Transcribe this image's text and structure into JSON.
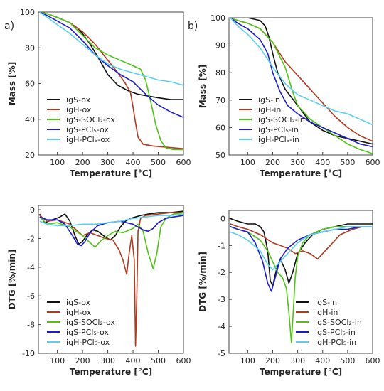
{
  "series_colors": [
    "#111111",
    "#b23a1e",
    "#4fc415",
    "#1c1ccf",
    "#5ad0ee"
  ],
  "chart_data": [
    {
      "type": "line",
      "panel_letter": "a)",
      "xlabel": "Temperature [°C]",
      "ylabel": "Mass [%]",
      "xlim": [
        25,
        600
      ],
      "ylim": [
        20,
        100
      ],
      "xticks": [
        100,
        200,
        300,
        400,
        500,
        600
      ],
      "yticks": [
        20,
        40,
        60,
        80,
        100
      ],
      "legend_position": "lower-left",
      "series": [
        {
          "name": "ligS-ox",
          "x": [
            30,
            60,
            100,
            150,
            180,
            200,
            230,
            260,
            300,
            340,
            380,
            420,
            460,
            500,
            550,
            600
          ],
          "values": [
            100,
            99,
            97,
            94,
            91,
            88,
            82,
            75,
            65,
            59,
            56,
            54,
            53,
            52,
            51,
            51
          ]
        },
        {
          "name": "ligH-ox",
          "x": [
            30,
            60,
            100,
            150,
            200,
            250,
            300,
            340,
            370,
            390,
            400,
            410,
            420,
            440,
            480,
            520,
            560,
            600
          ],
          "values": [
            100,
            99,
            97,
            94,
            89,
            82,
            73,
            66,
            60,
            55,
            47,
            38,
            30,
            26,
            25,
            24.5,
            24,
            23.5
          ]
        },
        {
          "name": "ligS-SOCl₂-ox",
          "x": [
            30,
            60,
            100,
            150,
            200,
            250,
            300,
            350,
            400,
            430,
            450,
            470,
            490,
            510,
            530,
            560,
            600
          ],
          "values": [
            100,
            99,
            97,
            94,
            87,
            80,
            76,
            73,
            70,
            68,
            62,
            50,
            37,
            28,
            24,
            23,
            23
          ]
        },
        {
          "name": "ligS-PCl₅-ox",
          "x": [
            30,
            60,
            100,
            150,
            200,
            250,
            300,
            350,
            400,
            450,
            500,
            550,
            600
          ],
          "values": [
            100,
            98,
            95,
            91,
            84,
            76,
            70,
            65,
            61,
            54,
            48,
            44,
            41
          ]
        },
        {
          "name": "ligH-PCl₅-ox",
          "x": [
            30,
            60,
            100,
            150,
            200,
            250,
            300,
            350,
            400,
            450,
            500,
            550,
            600
          ],
          "values": [
            100,
            97,
            93,
            88,
            82,
            76,
            71,
            68,
            66,
            64,
            62,
            61,
            59
          ]
        }
      ]
    },
    {
      "type": "line",
      "panel_letter": "b)",
      "xlabel": "Temperature [°C]",
      "ylabel": "Mass [%]",
      "xlim": [
        25,
        600
      ],
      "ylim": [
        50,
        100
      ],
      "xticks": [
        100,
        200,
        300,
        400,
        500,
        600
      ],
      "yticks": [
        50,
        60,
        70,
        80,
        90,
        100
      ],
      "legend_position": "lower-left",
      "series": [
        {
          "name": "ligS-in",
          "x": [
            30,
            60,
            100,
            150,
            170,
            185,
            200,
            220,
            250,
            300,
            350,
            400,
            450,
            500,
            550,
            600
          ],
          "values": [
            100,
            100,
            100,
            99,
            97,
            93,
            87,
            80,
            74,
            68,
            62,
            59,
            57,
            56,
            55,
            54
          ]
        },
        {
          "name": "ligH-in",
          "x": [
            30,
            60,
            100,
            150,
            200,
            250,
            300,
            350,
            400,
            450,
            500,
            550,
            600
          ],
          "values": [
            100,
            99,
            98,
            96,
            91,
            84,
            79,
            74,
            69,
            64,
            60,
            57,
            55
          ]
        },
        {
          "name": "ligS-SOCl₂-in",
          "x": [
            30,
            60,
            100,
            150,
            200,
            250,
            280,
            300,
            350,
            400,
            450,
            500,
            550,
            600
          ],
          "values": [
            100,
            99,
            98,
            96,
            91,
            82,
            73,
            68,
            63,
            60,
            57,
            54,
            52,
            50.5
          ]
        },
        {
          "name": "ligS-PCl₅-in",
          "x": [
            30,
            60,
            100,
            150,
            180,
            200,
            230,
            260,
            300,
            350,
            400,
            450,
            500,
            550,
            600
          ],
          "values": [
            100,
            98,
            96,
            92,
            87,
            80,
            73,
            68,
            65,
            62,
            60,
            58,
            56,
            54,
            53
          ]
        },
        {
          "name": "ligH-PCl₅-in",
          "x": [
            30,
            60,
            100,
            150,
            200,
            250,
            300,
            350,
            400,
            450,
            500,
            550,
            600
          ],
          "values": [
            100,
            97,
            94,
            89,
            82,
            76,
            72,
            70,
            68,
            66,
            65,
            63,
            61
          ]
        }
      ]
    },
    {
      "type": "line",
      "panel_letter": "",
      "xlabel": "Temperature [°C]",
      "ylabel": "DTG [%/min]",
      "xlim": [
        25,
        600
      ],
      "ylim": [
        -10,
        0.3
      ],
      "xticks": [
        100,
        200,
        300,
        400,
        500,
        600
      ],
      "yticks": [
        0,
        -2,
        -4,
        -6,
        -8,
        -10
      ],
      "legend_position": "lower-left",
      "series": [
        {
          "name": "ligS-ox",
          "x": [
            30,
            50,
            80,
            110,
            130,
            150,
            170,
            185,
            200,
            220,
            240,
            260,
            290,
            310,
            330,
            350,
            370,
            390,
            410,
            430,
            460,
            500,
            550,
            600
          ],
          "values": [
            -0.3,
            -0.9,
            -0.7,
            -0.5,
            -0.3,
            -0.8,
            -1.8,
            -2.4,
            -2.2,
            -1.7,
            -1.4,
            -1.5,
            -1.9,
            -2.1,
            -1.8,
            -1.2,
            -0.8,
            -0.6,
            -0.5,
            -0.4,
            -0.3,
            -0.2,
            -0.2,
            -0.1
          ]
        },
        {
          "name": "ligH-ox",
          "x": [
            30,
            60,
            100,
            150,
            200,
            230,
            260,
            290,
            320,
            345,
            360,
            375,
            385,
            395,
            405,
            410,
            415,
            420,
            430,
            450,
            500,
            550,
            600
          ],
          "values": [
            -0.4,
            -0.8,
            -0.7,
            -1.0,
            -1.8,
            -1.6,
            -1.8,
            -2.0,
            -2.1,
            -2.8,
            -3.5,
            -4.5,
            -3.0,
            -1.8,
            -3.5,
            -9.5,
            -6.0,
            -1.5,
            -0.6,
            -0.4,
            -0.3,
            -0.2,
            -0.2
          ]
        },
        {
          "name": "ligS-SOCl₂-ox",
          "x": [
            30,
            60,
            100,
            150,
            200,
            230,
            250,
            270,
            300,
            330,
            360,
            400,
            420,
            440,
            460,
            480,
            495,
            510,
            530,
            560,
            600
          ],
          "values": [
            -0.5,
            -1.0,
            -0.9,
            -1.2,
            -1.8,
            -2.3,
            -2.6,
            -2.2,
            -1.8,
            -1.5,
            -1.6,
            -1.3,
            -1.0,
            -1.5,
            -3.0,
            -4.1,
            -3.0,
            -1.2,
            -0.6,
            -0.3,
            -0.2
          ]
        },
        {
          "name": "ligS-PCl₅-ox",
          "x": [
            30,
            60,
            100,
            130,
            160,
            180,
            195,
            210,
            230,
            260,
            300,
            350,
            400,
            440,
            460,
            480,
            500,
            530,
            560,
            600
          ],
          "values": [
            -0.5,
            -0.7,
            -0.7,
            -1.0,
            -1.8,
            -2.4,
            -2.5,
            -2.2,
            -1.6,
            -1.1,
            -0.9,
            -0.8,
            -1.0,
            -1.4,
            -1.5,
            -1.3,
            -0.9,
            -0.6,
            -0.5,
            -0.4
          ]
        },
        {
          "name": "ligH-PCl₅-ox",
          "x": [
            30,
            60,
            100,
            150,
            200,
            250,
            300,
            350,
            400,
            450,
            500,
            550,
            600
          ],
          "values": [
            -0.8,
            -1.0,
            -1.1,
            -1.1,
            -1.0,
            -1.0,
            -0.9,
            -0.8,
            -0.6,
            -0.5,
            -0.4,
            -0.4,
            -0.3
          ]
        }
      ]
    },
    {
      "type": "line",
      "panel_letter": "",
      "xlabel": "Temperature [°C]",
      "ylabel": "DTG [%/min]",
      "xlim": [
        25,
        600
      ],
      "ylim": [
        -5,
        0.3
      ],
      "xticks": [
        100,
        200,
        300,
        400,
        500,
        600
      ],
      "yticks": [
        0,
        -1,
        -2,
        -3,
        -4,
        -5
      ],
      "legend_position": "lower-right",
      "series": [
        {
          "name": "ligS-in",
          "x": [
            30,
            60,
            100,
            130,
            150,
            165,
            180,
            190,
            200,
            215,
            230,
            250,
            265,
            280,
            300,
            330,
            360,
            400,
            450,
            500,
            550,
            600
          ],
          "values": [
            0.0,
            -0.1,
            -0.2,
            -0.2,
            -0.3,
            -0.5,
            -1.2,
            -2.3,
            -2.5,
            -1.9,
            -1.5,
            -1.9,
            -2.4,
            -2.0,
            -1.3,
            -0.9,
            -0.6,
            -0.4,
            -0.3,
            -0.2,
            -0.2,
            -0.2
          ]
        },
        {
          "name": "ligH-in",
          "x": [
            30,
            60,
            100,
            150,
            200,
            230,
            260,
            290,
            320,
            350,
            380,
            400,
            430,
            470,
            520,
            560,
            600
          ],
          "values": [
            -0.2,
            -0.3,
            -0.4,
            -0.6,
            -0.9,
            -1.0,
            -1.1,
            -1.3,
            -1.2,
            -1.3,
            -1.5,
            -1.3,
            -1.0,
            -0.6,
            -0.4,
            -0.3,
            -0.3
          ]
        },
        {
          "name": "ligS-SOCl₂-in",
          "x": [
            30,
            60,
            100,
            150,
            180,
            200,
            220,
            240,
            255,
            265,
            275,
            282,
            290,
            300,
            320,
            350,
            400,
            450,
            500,
            550,
            600
          ],
          "values": [
            -0.3,
            -0.4,
            -0.5,
            -0.8,
            -1.2,
            -1.6,
            -2.0,
            -2.2,
            -2.6,
            -3.5,
            -4.6,
            -3.5,
            -2.2,
            -1.4,
            -0.9,
            -0.6,
            -0.4,
            -0.3,
            -0.3,
            -0.3,
            -0.3
          ]
        },
        {
          "name": "ligS-PCl₅-in",
          "x": [
            30,
            60,
            100,
            130,
            160,
            180,
            195,
            210,
            230,
            260,
            300,
            350,
            400,
            450,
            500,
            550,
            600
          ],
          "values": [
            -0.3,
            -0.4,
            -0.5,
            -0.9,
            -1.6,
            -2.4,
            -2.7,
            -2.2,
            -1.5,
            -1.1,
            -0.8,
            -0.6,
            -0.5,
            -0.4,
            -0.4,
            -0.3,
            -0.3
          ]
        },
        {
          "name": "ligH-PCl₅-in",
          "x": [
            30,
            60,
            100,
            150,
            180,
            200,
            220,
            250,
            280,
            300,
            350,
            400,
            450,
            500,
            550,
            600
          ],
          "values": [
            -0.5,
            -0.6,
            -0.8,
            -1.2,
            -1.7,
            -1.9,
            -1.7,
            -1.4,
            -1.1,
            -0.9,
            -0.6,
            -0.5,
            -0.4,
            -0.3,
            -0.3,
            -0.3
          ]
        }
      ]
    }
  ]
}
